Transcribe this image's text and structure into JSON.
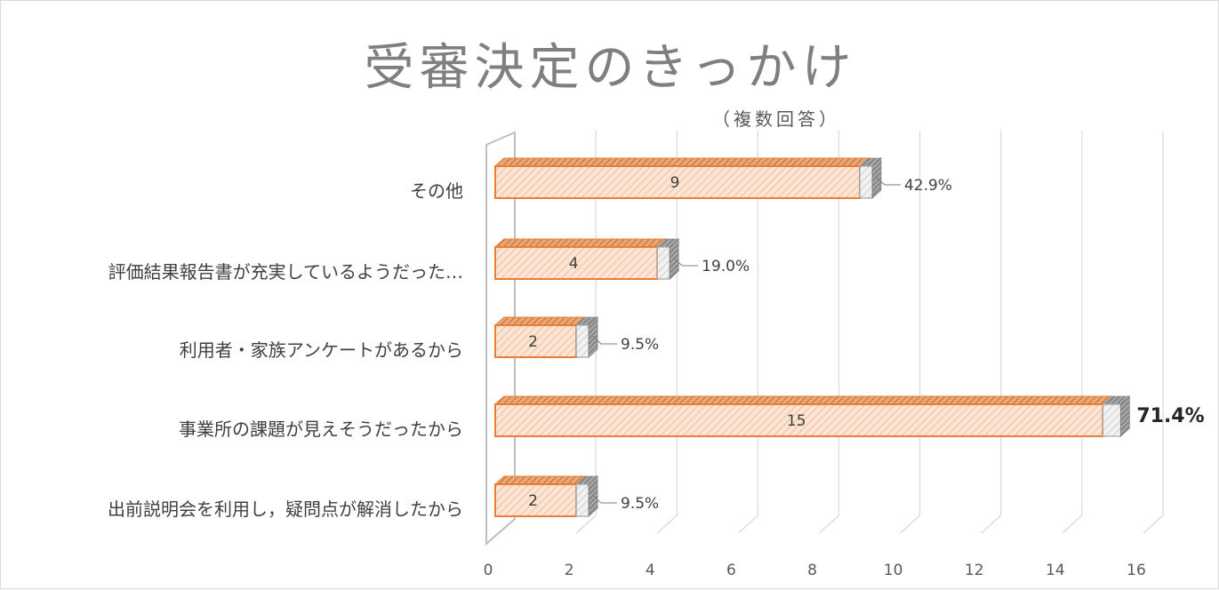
{
  "title": "受審決定のきっかけ",
  "subtitle": "（複数回答）",
  "chart_data": {
    "type": "bar",
    "orientation": "horizontal",
    "style": "3d-clustered",
    "title": "受審決定のきっかけ",
    "subtitle": "（複数回答）",
    "categories": [
      "その他",
      "評価結果報告書が充実しているようだった…",
      "利用者・家族アンケートがあるから",
      "事業所の課題が見えそうだったから",
      "出前説明会を利用し，疑問点が解消したから"
    ],
    "series": [
      {
        "values": [
          9,
          4,
          2,
          15,
          2
        ],
        "labels": [
          "9",
          "4",
          "2",
          "15",
          "2"
        ],
        "color": "#ed7d31",
        "fill": "#fbe5d6"
      },
      {
        "values": [
          0.429,
          0.19,
          0.095,
          0.714,
          0.095
        ],
        "labels": [
          "42.9%",
          "19.0%",
          "9.5%",
          "71.4%",
          "9.5%"
        ],
        "color": "#a5a5a5",
        "fill": "#e7e6e6"
      }
    ],
    "xticks": [
      "0",
      "2",
      "4",
      "6",
      "8",
      "10",
      "12",
      "14",
      "16"
    ],
    "xlim": [
      0,
      16
    ],
    "grid": true,
    "emphasized_label": "71.4%"
  }
}
